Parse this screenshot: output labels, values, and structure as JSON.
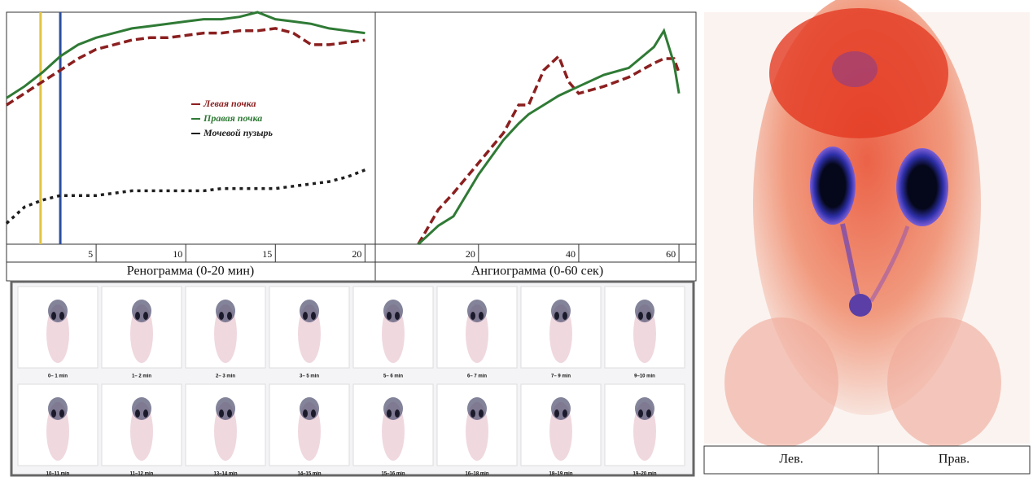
{
  "chart_data": [
    {
      "type": "line",
      "title": "Ренограмма (0-20 мин)",
      "x": [
        0,
        1,
        2,
        3,
        4,
        5,
        6,
        7,
        8,
        9,
        10,
        11,
        12,
        13,
        14,
        15,
        16,
        17,
        18,
        19,
        20
      ],
      "series": [
        {
          "name": "Левая почка",
          "color": "#8b1f1f",
          "style": "dashed",
          "values": [
            60,
            65,
            70,
            75,
            80,
            84,
            86,
            88,
            89,
            89,
            90,
            91,
            91,
            92,
            92,
            93,
            91,
            86,
            86,
            87,
            88
          ]
        },
        {
          "name": "Правая почка",
          "color": "#2f7a35",
          "style": "solid",
          "values": [
            63,
            68,
            74,
            81,
            86,
            89,
            91,
            93,
            94,
            95,
            96,
            97,
            97,
            98,
            100,
            97,
            96,
            95,
            93,
            92,
            91
          ]
        },
        {
          "name": "Мочевой пузырь",
          "color": "#1e1e1e",
          "style": "dotted",
          "values": [
            9,
            16,
            19,
            21,
            21,
            21,
            22,
            23,
            23,
            23,
            23,
            23,
            24,
            24,
            24,
            24,
            25,
            26,
            27,
            29,
            32
          ]
        }
      ],
      "markers": [
        {
          "x": 1.9,
          "color": "#e2c441"
        },
        {
          "x": 3,
          "color": "#2b4f9e"
        }
      ],
      "xlim": [
        0,
        20.3
      ],
      "ylim": [
        0,
        100
      ],
      "xticks": [
        5,
        10,
        15,
        20
      ]
    },
    {
      "type": "line",
      "title": "Ангиограмма (0-60 сек)",
      "x": [
        8,
        12,
        15,
        20,
        25,
        28,
        30,
        33,
        36,
        38,
        40,
        45,
        50,
        55,
        57,
        59,
        60
      ],
      "series": [
        {
          "name": "Левая почка",
          "color": "#8b1f1f",
          "style": "dashed",
          "values": [
            0,
            15,
            22,
            35,
            48,
            60,
            60,
            75,
            81,
            70,
            65,
            68,
            72,
            78,
            80,
            80,
            74
          ]
        },
        {
          "name": "Правая почка",
          "color": "#2f7a35",
          "style": "solid",
          "values": [
            0,
            8,
            12,
            30,
            45,
            52,
            56,
            60,
            64,
            66,
            68,
            73,
            76,
            85,
            92,
            78,
            65
          ]
        }
      ],
      "xlim": [
        -0.6,
        63.4
      ],
      "ylim": [
        0,
        100
      ],
      "xticks": [
        20,
        40,
        60
      ]
    }
  ],
  "frames": [
    "0– 1 min",
    "1– 2 min",
    "2– 3 min",
    "3– 5 min",
    "5– 6 min",
    "6– 7 min",
    "7– 9 min",
    "9–10 min",
    "10–11 min",
    "11–12 min",
    "13–14 min",
    "14–15 min",
    "15–16 min",
    "16–18 min",
    "18–19 min",
    "19–20 min"
  ],
  "image_labels": [
    "Лев.",
    "Прав."
  ]
}
